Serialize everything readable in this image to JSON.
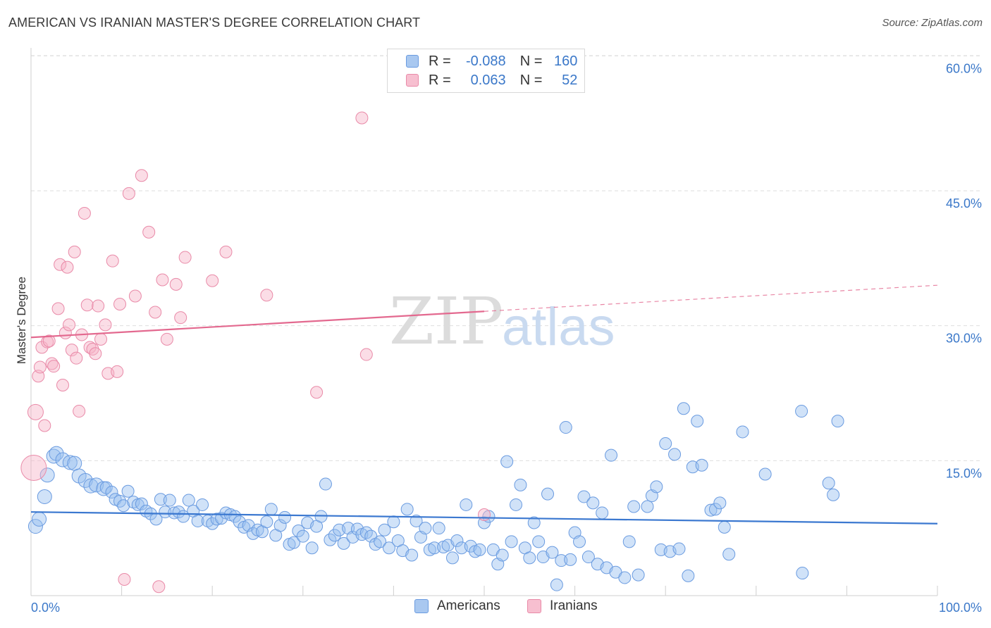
{
  "title": "AMERICAN VS IRANIAN MASTER'S DEGREE CORRELATION CHART",
  "source": "Source: ZipAtlas.com",
  "watermark": {
    "zip": "ZIP",
    "atlas": "atlas"
  },
  "legend_top": {
    "rows": [
      {
        "r_label": "R =",
        "r_value": "-0.088",
        "n_label": "N =",
        "n_value": "160",
        "color": "#a9c8f0",
        "border": "#6a9be0"
      },
      {
        "r_label": "R =",
        "r_value": "0.063",
        "n_label": "N =",
        "n_value": "52",
        "color": "#f7bfd0",
        "border": "#e98aa8"
      }
    ]
  },
  "legend_bottom": {
    "items": [
      {
        "label": "Americans",
        "color": "#a9c8f0",
        "border": "#6a9be0"
      },
      {
        "label": "Iranians",
        "color": "#f7bfd0",
        "border": "#e98aa8"
      }
    ]
  },
  "chart_data": {
    "type": "scatter",
    "title": "AMERICAN VS IRANIAN MASTER'S DEGREE CORRELATION CHART",
    "xlabel": "",
    "ylabel": "Master's Degree",
    "xlim": [
      0,
      100
    ],
    "ylim": [
      0,
      62
    ],
    "x_tick_labels": [
      "0.0%",
      "100.0%"
    ],
    "y_ticks": [
      15,
      30,
      45,
      60
    ],
    "y_tick_labels": [
      "15.0%",
      "30.0%",
      "45.0%",
      "60.0%"
    ],
    "grid": true,
    "legend_position": "top-center",
    "colors": {
      "americans": "#3b78d0",
      "iranians": "#e3698f"
    },
    "series": [
      {
        "name": "Americans",
        "trend": {
          "x": [
            0,
            100
          ],
          "y": [
            9.3,
            8.0
          ]
        },
        "points": [
          [
            0.5,
            7.7
          ],
          [
            0.9,
            8.5
          ],
          [
            1.5,
            11.0
          ],
          [
            1.8,
            13.4
          ],
          [
            2.5,
            15.5
          ],
          [
            2.8,
            15.8
          ],
          [
            3.5,
            15.1
          ],
          [
            4.3,
            14.8
          ],
          [
            4.8,
            14.7
          ],
          [
            5.3,
            13.3
          ],
          [
            6.0,
            12.8
          ],
          [
            6.6,
            12.2
          ],
          [
            7.2,
            12.3
          ],
          [
            8.0,
            11.9
          ],
          [
            8.3,
            12.0
          ],
          [
            8.9,
            11.5
          ],
          [
            9.3,
            10.7
          ],
          [
            9.8,
            10.5
          ],
          [
            10.2,
            10.0
          ],
          [
            10.7,
            11.6
          ],
          [
            11.3,
            10.4
          ],
          [
            11.8,
            10.1
          ],
          [
            12.2,
            10.2
          ],
          [
            12.7,
            9.4
          ],
          [
            13.2,
            9.1
          ],
          [
            13.8,
            8.5
          ],
          [
            14.3,
            10.7
          ],
          [
            14.8,
            9.3
          ],
          [
            15.3,
            10.6
          ],
          [
            15.8,
            9.2
          ],
          [
            16.3,
            9.3
          ],
          [
            16.8,
            8.8
          ],
          [
            17.4,
            10.6
          ],
          [
            17.9,
            9.4
          ],
          [
            18.4,
            8.3
          ],
          [
            18.9,
            10.1
          ],
          [
            19.5,
            8.3
          ],
          [
            20.0,
            8.0
          ],
          [
            20.5,
            8.5
          ],
          [
            21.0,
            8.6
          ],
          [
            21.5,
            9.2
          ],
          [
            22.0,
            9.0
          ],
          [
            22.5,
            8.8
          ],
          [
            23.0,
            8.2
          ],
          [
            23.5,
            7.6
          ],
          [
            24.0,
            7.8
          ],
          [
            24.5,
            6.9
          ],
          [
            25.0,
            7.3
          ],
          [
            25.5,
            7.1
          ],
          [
            26.0,
            8.2
          ],
          [
            26.5,
            9.6
          ],
          [
            27.0,
            6.7
          ],
          [
            27.5,
            7.8
          ],
          [
            28.0,
            8.7
          ],
          [
            28.5,
            5.7
          ],
          [
            29.0,
            5.9
          ],
          [
            29.5,
            7.2
          ],
          [
            30.0,
            6.6
          ],
          [
            30.5,
            8.1
          ],
          [
            31.0,
            5.3
          ],
          [
            31.5,
            7.7
          ],
          [
            32.0,
            8.8
          ],
          [
            32.5,
            12.4
          ],
          [
            33.0,
            6.2
          ],
          [
            33.5,
            6.7
          ],
          [
            34.0,
            7.3
          ],
          [
            34.5,
            5.8
          ],
          [
            35.0,
            7.5
          ],
          [
            35.5,
            6.5
          ],
          [
            36.0,
            7.4
          ],
          [
            36.5,
            6.8
          ],
          [
            37.0,
            7.0
          ],
          [
            37.5,
            6.6
          ],
          [
            38.0,
            5.7
          ],
          [
            38.5,
            6.0
          ],
          [
            39.0,
            7.3
          ],
          [
            39.5,
            5.3
          ],
          [
            40.0,
            8.2
          ],
          [
            40.5,
            6.1
          ],
          [
            41.0,
            5.0
          ],
          [
            41.5,
            9.6
          ],
          [
            42.0,
            4.5
          ],
          [
            42.5,
            8.3
          ],
          [
            43.0,
            6.5
          ],
          [
            43.5,
            7.5
          ],
          [
            44.0,
            5.1
          ],
          [
            44.5,
            5.3
          ],
          [
            45.0,
            7.5
          ],
          [
            45.5,
            5.4
          ],
          [
            46.0,
            5.6
          ],
          [
            46.5,
            4.2
          ],
          [
            47.0,
            6.1
          ],
          [
            47.5,
            5.3
          ],
          [
            48.0,
            10.1
          ],
          [
            48.5,
            5.5
          ],
          [
            49.0,
            4.9
          ],
          [
            49.5,
            5.1
          ],
          [
            50.0,
            8.1
          ],
          [
            50.5,
            8.8
          ],
          [
            51.0,
            5.1
          ],
          [
            51.5,
            3.5
          ],
          [
            52.0,
            4.5
          ],
          [
            52.5,
            14.9
          ],
          [
            53.0,
            6.0
          ],
          [
            53.5,
            10.1
          ],
          [
            54.0,
            12.3
          ],
          [
            54.5,
            5.3
          ],
          [
            55.0,
            4.2
          ],
          [
            55.5,
            8.1
          ],
          [
            56.0,
            6.0
          ],
          [
            56.5,
            4.3
          ],
          [
            57.0,
            11.3
          ],
          [
            57.5,
            4.8
          ],
          [
            58.0,
            1.2
          ],
          [
            58.5,
            3.9
          ],
          [
            59.0,
            18.7
          ],
          [
            59.5,
            4.0
          ],
          [
            60.0,
            7.0
          ],
          [
            60.5,
            6.0
          ],
          [
            61.0,
            11.0
          ],
          [
            61.5,
            4.3
          ],
          [
            62.0,
            10.3
          ],
          [
            62.5,
            3.5
          ],
          [
            63.0,
            9.2
          ],
          [
            63.5,
            3.1
          ],
          [
            64.0,
            15.6
          ],
          [
            64.5,
            2.6
          ],
          [
            65.5,
            2.0
          ],
          [
            66.0,
            6.0
          ],
          [
            66.5,
            9.9
          ],
          [
            67.0,
            2.3
          ],
          [
            68.0,
            9.9
          ],
          [
            68.5,
            11.1
          ],
          [
            69.0,
            12.1
          ],
          [
            69.5,
            5.1
          ],
          [
            70.0,
            16.9
          ],
          [
            70.5,
            4.9
          ],
          [
            71.0,
            15.7
          ],
          [
            71.5,
            5.2
          ],
          [
            72.0,
            20.8
          ],
          [
            72.5,
            2.2
          ],
          [
            73.0,
            14.3
          ],
          [
            73.5,
            19.4
          ],
          [
            74.0,
            14.5
          ],
          [
            75.0,
            9.5
          ],
          [
            75.5,
            9.6
          ],
          [
            76.0,
            10.3
          ],
          [
            76.5,
            7.6
          ],
          [
            77.0,
            4.6
          ],
          [
            78.5,
            18.2
          ],
          [
            81.0,
            13.5
          ],
          [
            85.0,
            20.5
          ],
          [
            85.1,
            2.5
          ],
          [
            88.0,
            12.5
          ],
          [
            88.5,
            11.2
          ],
          [
            89.0,
            19.4
          ]
        ]
      },
      {
        "name": "Iranians",
        "trend": {
          "x": [
            0,
            50
          ],
          "y": [
            28.7,
            31.6
          ]
        },
        "trend_dashed": {
          "x": [
            50,
            100
          ],
          "y": [
            31.6,
            34.5
          ]
        },
        "points": [
          [
            0.3,
            14.2
          ],
          [
            0.5,
            20.4
          ],
          [
            0.8,
            24.4
          ],
          [
            1.0,
            25.4
          ],
          [
            1.2,
            27.6
          ],
          [
            1.5,
            18.9
          ],
          [
            1.8,
            28.2
          ],
          [
            2.0,
            28.3
          ],
          [
            2.3,
            25.8
          ],
          [
            2.5,
            25.5
          ],
          [
            3.0,
            31.9
          ],
          [
            3.2,
            36.8
          ],
          [
            3.5,
            23.4
          ],
          [
            3.8,
            29.2
          ],
          [
            4.0,
            36.5
          ],
          [
            4.2,
            30.1
          ],
          [
            4.5,
            27.3
          ],
          [
            4.8,
            38.2
          ],
          [
            5.0,
            26.4
          ],
          [
            5.3,
            20.5
          ],
          [
            5.6,
            29.0
          ],
          [
            5.9,
            42.5
          ],
          [
            6.2,
            32.3
          ],
          [
            6.5,
            27.6
          ],
          [
            6.8,
            27.4
          ],
          [
            7.1,
            26.9
          ],
          [
            7.4,
            32.2
          ],
          [
            7.7,
            28.5
          ],
          [
            8.2,
            30.1
          ],
          [
            8.5,
            24.7
          ],
          [
            9.0,
            37.2
          ],
          [
            9.5,
            24.9
          ],
          [
            9.8,
            32.4
          ],
          [
            10.3,
            1.8
          ],
          [
            10.8,
            44.7
          ],
          [
            11.5,
            33.3
          ],
          [
            12.2,
            46.7
          ],
          [
            13.0,
            40.4
          ],
          [
            13.7,
            31.5
          ],
          [
            14.1,
            1.0
          ],
          [
            14.5,
            35.1
          ],
          [
            15.0,
            28.5
          ],
          [
            16.0,
            34.6
          ],
          [
            16.5,
            30.9
          ],
          [
            17.0,
            37.6
          ],
          [
            20.0,
            35.0
          ],
          [
            21.5,
            38.2
          ],
          [
            26.0,
            33.4
          ],
          [
            31.5,
            22.6
          ],
          [
            36.5,
            53.1
          ],
          [
            37.0,
            26.8
          ],
          [
            50.0,
            9.0
          ]
        ]
      }
    ]
  }
}
